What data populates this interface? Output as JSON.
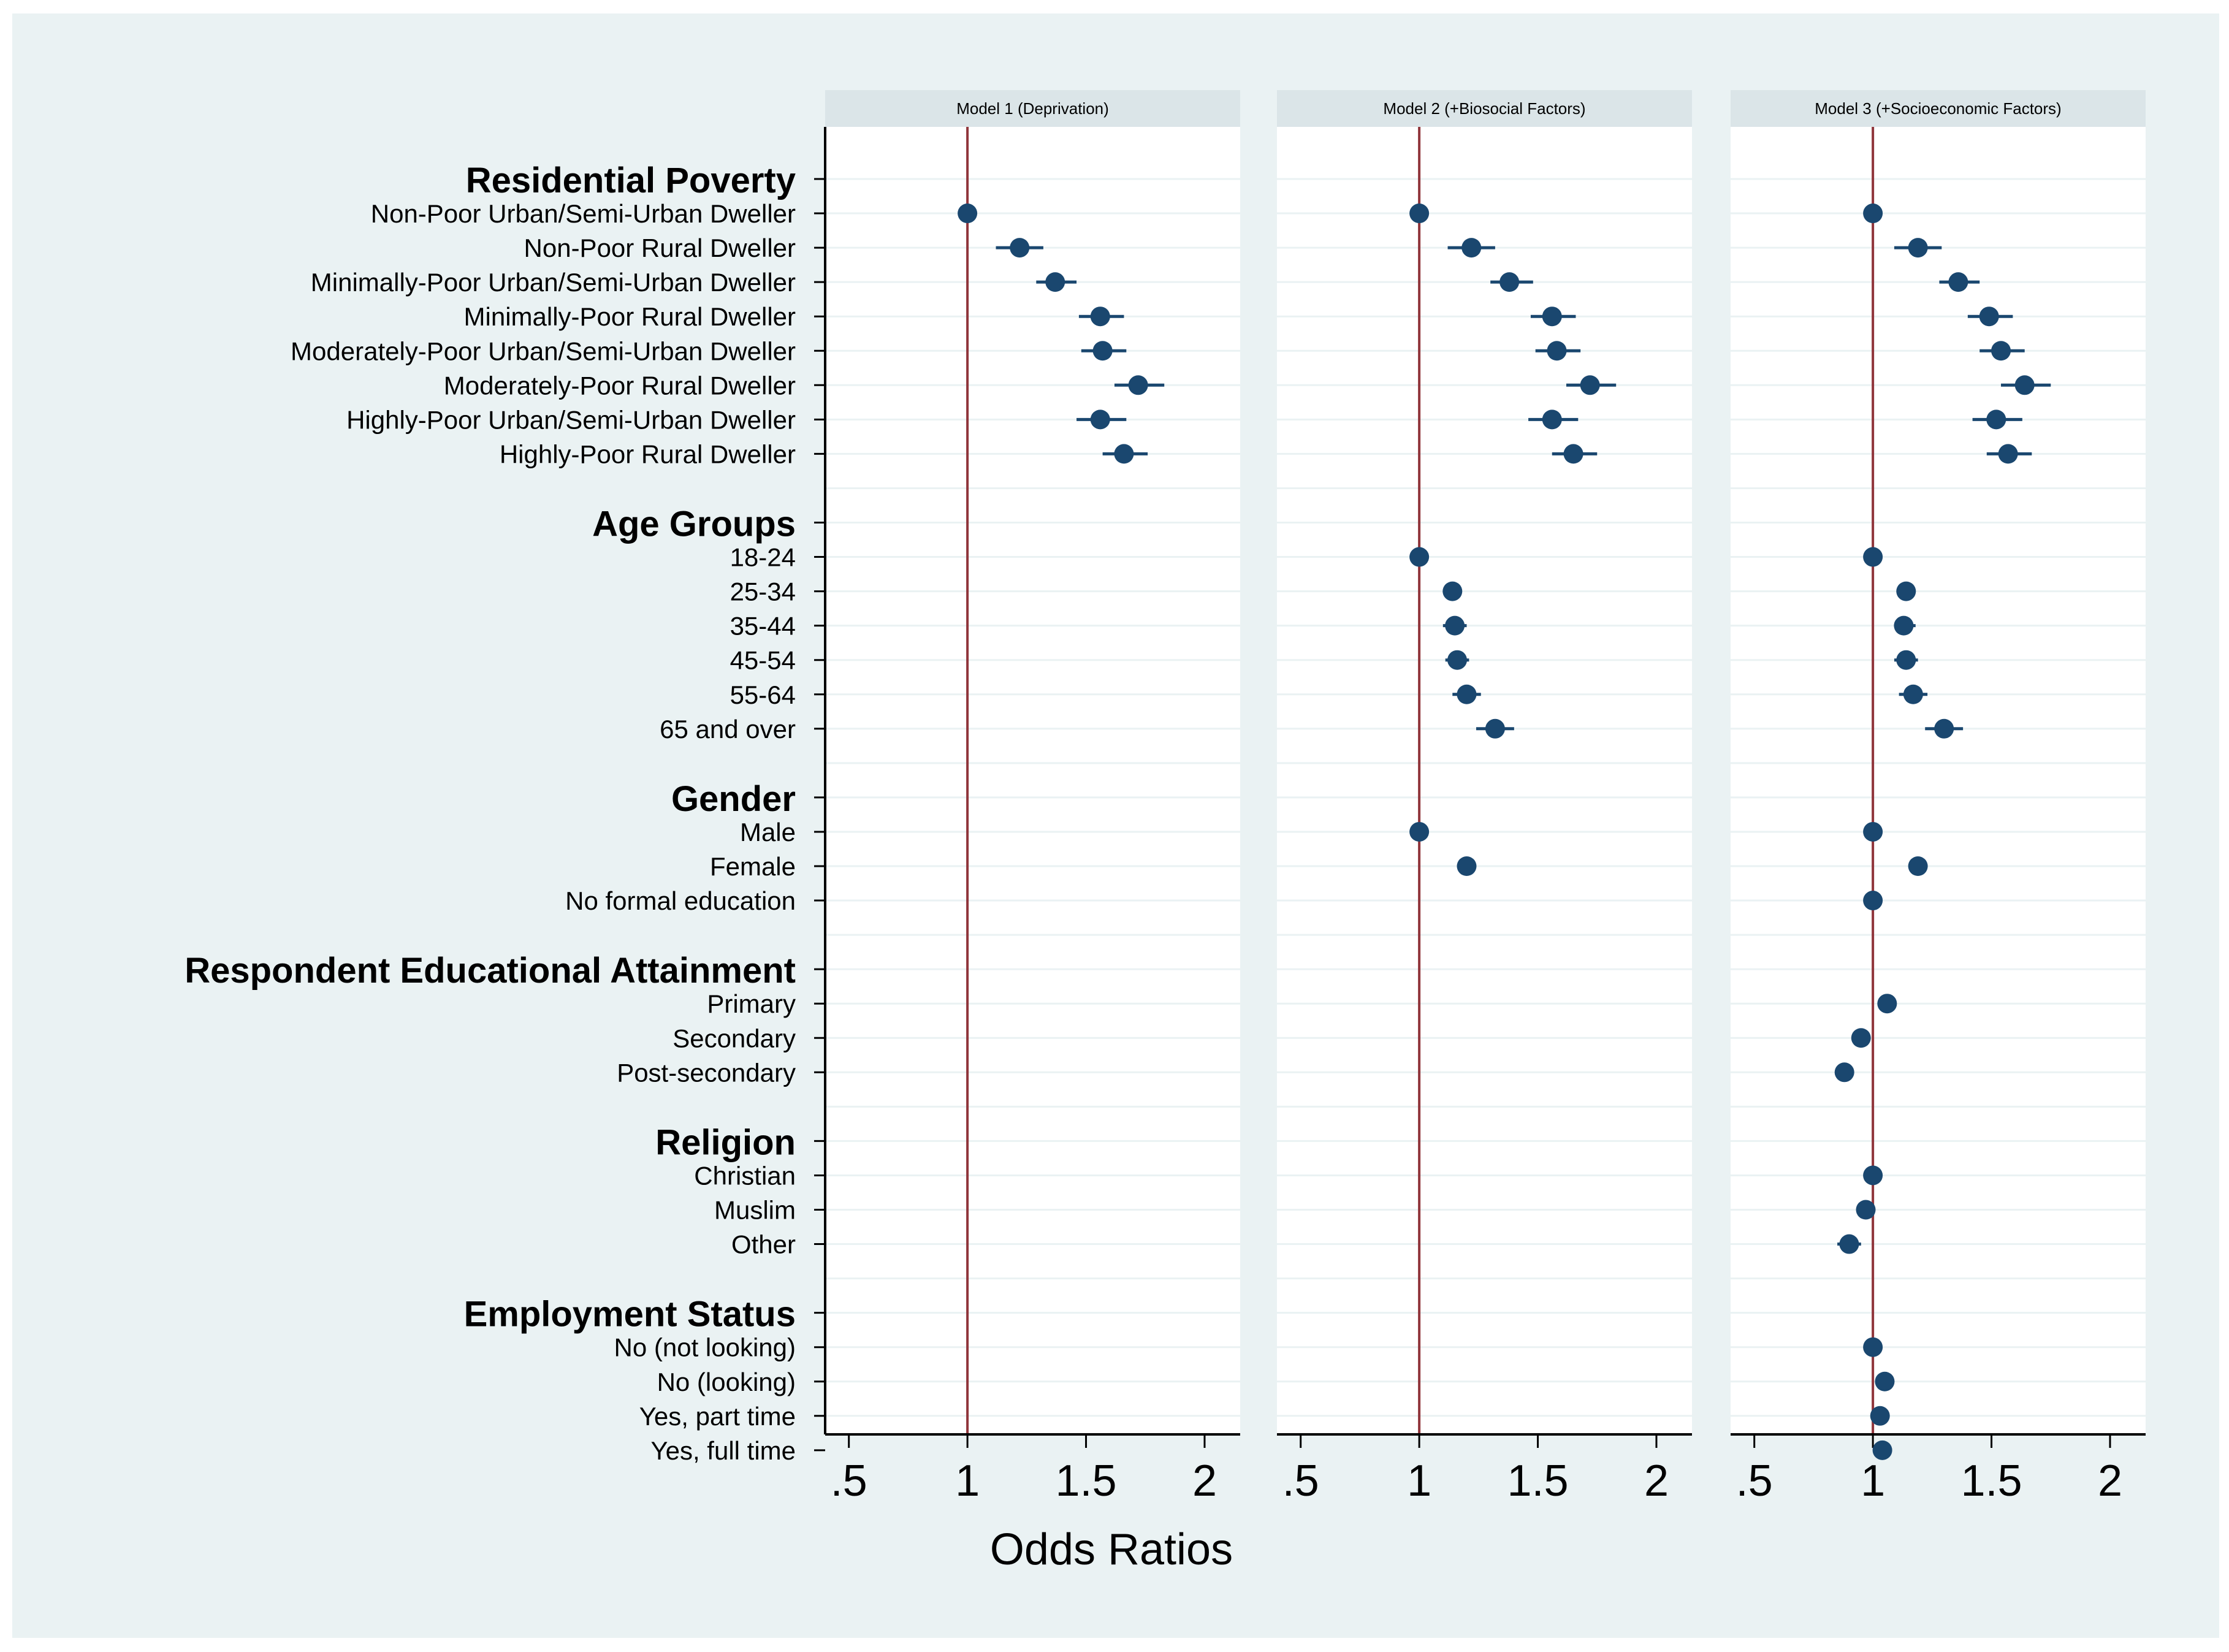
{
  "chart_data": {
    "type": "scatter",
    "subtype": "coefficient-plot",
    "xlabel": "Odds Ratios",
    "xlim": [
      0.4,
      2.15
    ],
    "xticks": [
      {
        "value": 0.5,
        "label": ".5"
      },
      {
        "value": 1,
        "label": "1"
      },
      {
        "value": 1.5,
        "label": "1.5"
      },
      {
        "value": 2,
        "label": "2"
      }
    ],
    "reference_line": 1,
    "colors": {
      "background": "#eaf2f3",
      "plot": "#ffffff",
      "strip": "#dbe5e8",
      "marker": "#1a476f",
      "reference": "#90353b",
      "grid": "#eaf2f3",
      "text": "#000000"
    },
    "panels": [
      {
        "title": "Model 1 (Deprivation)"
      },
      {
        "title": "Model 2 (+Biosocial Factors)"
      },
      {
        "title": "Model 3 (+Socioeconomic Factors)"
      }
    ],
    "rows": [
      {
        "type": "header",
        "label": "Residential Poverty"
      },
      {
        "type": "item",
        "label": "Non-Poor Urban/Semi-Urban Dweller",
        "values": [
          [
            1.0,
            1.0,
            1.0
          ],
          [
            1.0,
            1.0,
            1.0
          ],
          [
            1.0,
            1.0,
            1.0
          ]
        ]
      },
      {
        "type": "item",
        "label": "Non-Poor Rural Dweller",
        "values": [
          [
            1.22,
            1.12,
            1.32
          ],
          [
            1.22,
            1.12,
            1.32
          ],
          [
            1.19,
            1.09,
            1.29
          ]
        ]
      },
      {
        "type": "item",
        "label": "Minimally-Poor Urban/Semi-Urban Dweller",
        "values": [
          [
            1.37,
            1.29,
            1.46
          ],
          [
            1.38,
            1.3,
            1.48
          ],
          [
            1.36,
            1.28,
            1.45
          ]
        ]
      },
      {
        "type": "item",
        "label": "Minimally-Poor Rural Dweller",
        "values": [
          [
            1.56,
            1.47,
            1.66
          ],
          [
            1.56,
            1.47,
            1.66
          ],
          [
            1.49,
            1.4,
            1.59
          ]
        ]
      },
      {
        "type": "item",
        "label": "Moderately-Poor Urban/Semi-Urban Dweller",
        "values": [
          [
            1.57,
            1.48,
            1.67
          ],
          [
            1.58,
            1.49,
            1.68
          ],
          [
            1.54,
            1.45,
            1.64
          ]
        ]
      },
      {
        "type": "item",
        "label": "Moderately-Poor Rural Dweller",
        "values": [
          [
            1.72,
            1.62,
            1.83
          ],
          [
            1.72,
            1.62,
            1.83
          ],
          [
            1.64,
            1.54,
            1.75
          ]
        ]
      },
      {
        "type": "item",
        "label": "Highly-Poor Urban/Semi-Urban Dweller",
        "values": [
          [
            1.56,
            1.46,
            1.67
          ],
          [
            1.56,
            1.46,
            1.67
          ],
          [
            1.52,
            1.42,
            1.63
          ]
        ]
      },
      {
        "type": "item",
        "label": "Highly-Poor Rural Dweller",
        "values": [
          [
            1.66,
            1.57,
            1.76
          ],
          [
            1.65,
            1.56,
            1.75
          ],
          [
            1.57,
            1.48,
            1.67
          ]
        ]
      },
      {
        "type": "gap"
      },
      {
        "type": "header",
        "label": "Age Groups"
      },
      {
        "type": "item",
        "label": "18-24",
        "values": [
          null,
          [
            1.0,
            1.0,
            1.0
          ],
          [
            1.0,
            1.0,
            1.0
          ]
        ]
      },
      {
        "type": "item",
        "label": "25-34",
        "values": [
          null,
          [
            1.14,
            1.1,
            1.18
          ],
          [
            1.14,
            1.1,
            1.18
          ]
        ]
      },
      {
        "type": "item",
        "label": "35-44",
        "values": [
          null,
          [
            1.15,
            1.1,
            1.2
          ],
          [
            1.13,
            1.09,
            1.18
          ]
        ]
      },
      {
        "type": "item",
        "label": "45-54",
        "values": [
          null,
          [
            1.16,
            1.11,
            1.21
          ],
          [
            1.14,
            1.09,
            1.19
          ]
        ]
      },
      {
        "type": "item",
        "label": "55-64",
        "values": [
          null,
          [
            1.2,
            1.14,
            1.26
          ],
          [
            1.17,
            1.11,
            1.23
          ]
        ]
      },
      {
        "type": "item",
        "label": "65 and over",
        "values": [
          null,
          [
            1.32,
            1.24,
            1.4
          ],
          [
            1.3,
            1.22,
            1.38
          ]
        ]
      },
      {
        "type": "gap"
      },
      {
        "type": "header",
        "label": "Gender"
      },
      {
        "type": "item",
        "label": "Male",
        "values": [
          null,
          [
            1.0,
            1.0,
            1.0
          ],
          [
            1.0,
            1.0,
            1.0
          ]
        ]
      },
      {
        "type": "item",
        "label": "Female",
        "values": [
          null,
          [
            1.2,
            1.17,
            1.24
          ],
          [
            1.19,
            1.15,
            1.23
          ]
        ]
      },
      {
        "type": "item",
        "label": "No formal education",
        "values": [
          null,
          null,
          [
            1.0,
            1.0,
            1.0
          ]
        ]
      },
      {
        "type": "gap"
      },
      {
        "type": "header",
        "label": "Respondent Educational Attainment"
      },
      {
        "type": "item",
        "label": "Primary",
        "values": [
          null,
          null,
          [
            1.06,
            1.02,
            1.1
          ]
        ]
      },
      {
        "type": "item",
        "label": "Secondary",
        "values": [
          null,
          null,
          [
            0.95,
            0.91,
            0.99
          ]
        ]
      },
      {
        "type": "item",
        "label": "Post-secondary",
        "values": [
          null,
          null,
          [
            0.88,
            0.84,
            0.92
          ]
        ]
      },
      {
        "type": "gap"
      },
      {
        "type": "header",
        "label": "Religion"
      },
      {
        "type": "item",
        "label": "Christian",
        "values": [
          null,
          null,
          [
            1.0,
            1.0,
            1.0
          ]
        ]
      },
      {
        "type": "item",
        "label": "Muslim",
        "values": [
          null,
          null,
          [
            0.97,
            0.93,
            1.01
          ]
        ]
      },
      {
        "type": "item",
        "label": "Other",
        "values": [
          null,
          null,
          [
            0.9,
            0.85,
            0.95
          ]
        ]
      },
      {
        "type": "gap"
      },
      {
        "type": "header",
        "label": "Employment Status"
      },
      {
        "type": "item",
        "label": "No (not looking)",
        "values": [
          null,
          null,
          [
            1.0,
            1.0,
            1.0
          ]
        ]
      },
      {
        "type": "item",
        "label": "No (looking)",
        "values": [
          null,
          null,
          [
            1.05,
            1.01,
            1.09
          ]
        ]
      },
      {
        "type": "item",
        "label": "Yes, part time",
        "values": [
          null,
          null,
          [
            1.03,
            0.99,
            1.07
          ]
        ]
      },
      {
        "type": "item",
        "label": "Yes, full time",
        "values": [
          null,
          null,
          [
            1.04,
            1.0,
            1.08
          ]
        ]
      }
    ]
  }
}
